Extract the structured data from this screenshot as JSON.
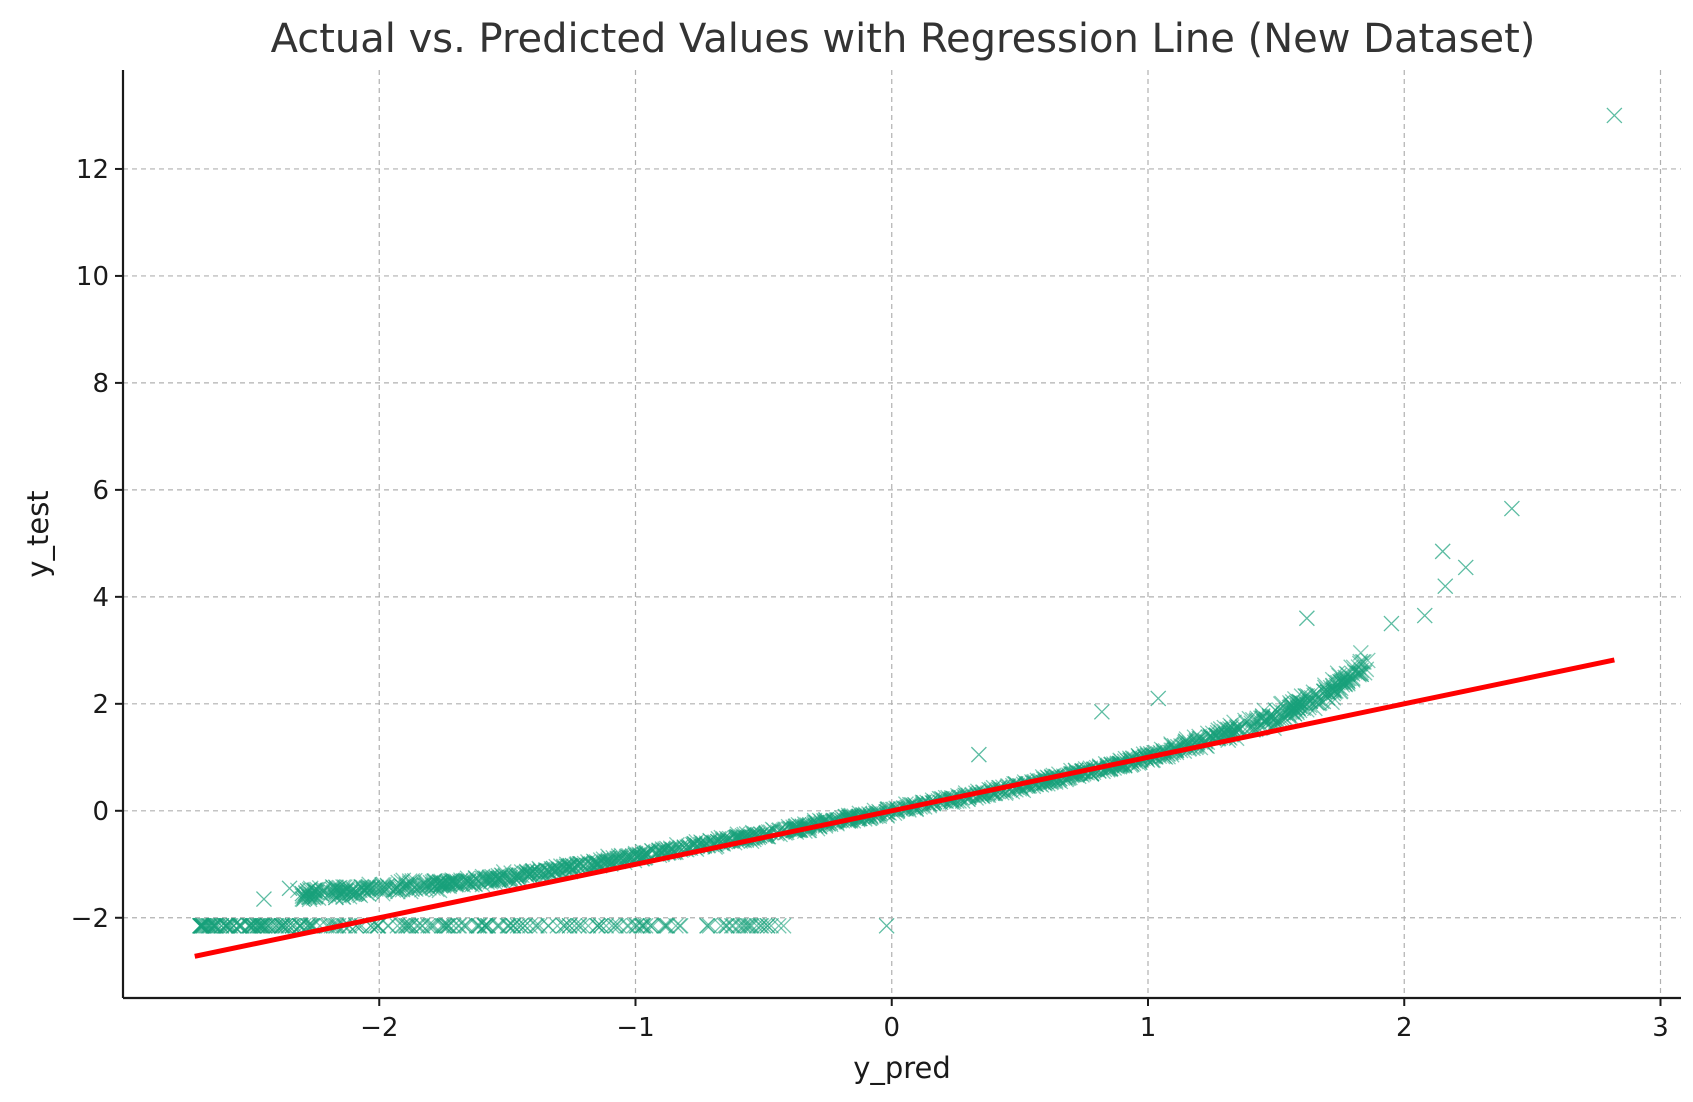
{
  "chart_data": {
    "type": "scatter",
    "title": "Actual vs. Predicted Values with Regression Line (New Dataset)",
    "xlabel": "y_pred",
    "ylabel": "y_test",
    "xlim": [
      -3.0,
      3.08
    ],
    "ylim": [
      -3.5,
      13.85
    ],
    "xticks": [
      -2,
      -1,
      0,
      1,
      2,
      3
    ],
    "yticks": [
      -2,
      0,
      2,
      4,
      6,
      8,
      10,
      12
    ],
    "xtick_labels": [
      "−2",
      "−1",
      "0",
      "1",
      "2",
      "3"
    ],
    "ytick_labels": [
      "−2",
      "0",
      "2",
      "4",
      "6",
      "8",
      "10",
      "12"
    ],
    "grid": true,
    "legend": "none",
    "marker": "x",
    "colors": {
      "scatter": "#17a07a",
      "regression": "#ff0000"
    },
    "series": [
      {
        "kind": "scatter",
        "description_note": "main trend cluster approx y ≈ 0.8x + 0.18x^2, x from -2.4 to 1.9 (thousands of points)",
        "trend_points": [
          [
            -2.0,
            -1.45
          ],
          [
            -1.5,
            -1.25
          ],
          [
            -1.0,
            -0.85
          ],
          [
            -0.5,
            -0.45
          ],
          [
            0.0,
            0.0
          ],
          [
            0.5,
            0.45
          ],
          [
            1.0,
            1.0
          ],
          [
            1.3,
            1.45
          ],
          [
            1.5,
            1.75
          ],
          [
            1.7,
            2.2
          ],
          [
            1.85,
            2.75
          ]
        ],
        "floor_cluster": {
          "y": -2.15,
          "x_range": [
            -2.7,
            -0.35
          ]
        },
        "outliers": [
          [
            2.82,
            13.0
          ],
          [
            2.42,
            5.65
          ],
          [
            2.15,
            4.85
          ],
          [
            2.16,
            4.2
          ],
          [
            2.24,
            4.55
          ],
          [
            2.08,
            3.65
          ],
          [
            1.95,
            3.5
          ],
          [
            1.62,
            3.6
          ],
          [
            0.34,
            1.05
          ],
          [
            0.82,
            1.85
          ],
          [
            1.04,
            2.1
          ],
          [
            -0.02,
            -2.15
          ],
          [
            -2.45,
            -1.65
          ],
          [
            -2.3,
            -1.55
          ],
          [
            -2.35,
            -1.45
          ]
        ]
      },
      {
        "kind": "line",
        "points": [
          [
            -2.72,
            -2.72
          ],
          [
            2.82,
            2.82
          ]
        ]
      }
    ]
  }
}
